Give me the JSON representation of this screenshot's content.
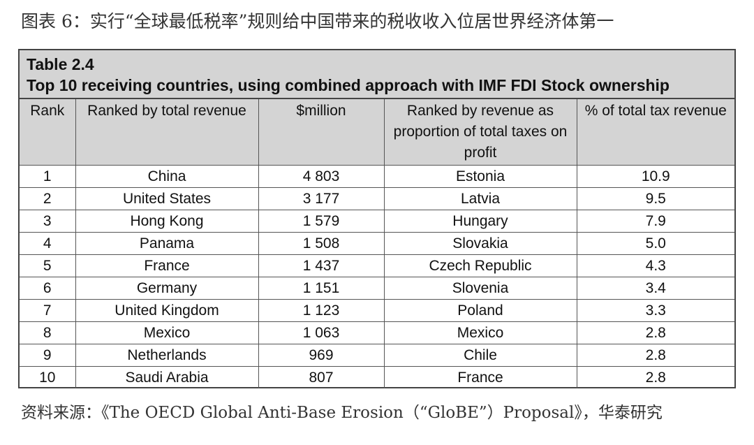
{
  "figure_caption": "图表 6：实行“全球最低税率”规则给中国带来的税收收入位居世界经济体第一",
  "table": {
    "label": "Table 2.4",
    "title": "Top 10 receiving countries, using combined approach with IMF FDI Stock ownership",
    "headers": [
      "Rank",
      "Ranked by total revenue",
      "$million",
      "Ranked by revenue as proportion of total taxes on profit",
      "% of total tax revenue"
    ],
    "rows": [
      [
        "1",
        "China",
        "4 803",
        "Estonia",
        "10.9"
      ],
      [
        "2",
        "United States",
        "3 177",
        "Latvia",
        "9.5"
      ],
      [
        "3",
        "Hong Kong",
        "1 579",
        "Hungary",
        "7.9"
      ],
      [
        "4",
        "Panama",
        "1 508",
        "Slovakia",
        "5.0"
      ],
      [
        "5",
        "France",
        "1 437",
        "Czech Republic",
        "4.3"
      ],
      [
        "6",
        "Germany",
        "1 151",
        "Slovenia",
        "3.4"
      ],
      [
        "7",
        "United Kingdom",
        "1 123",
        "Poland",
        "3.3"
      ],
      [
        "8",
        "Mexico",
        "1 063",
        "Mexico",
        "2.8"
      ],
      [
        "9",
        "Netherlands",
        "969",
        "Chile",
        "2.8"
      ],
      [
        "10",
        "Saudi Arabia",
        "807",
        "France",
        "2.8"
      ]
    ]
  },
  "source": "资料来源：《The OECD Global Anti-Base Erosion（“GloBE”）Proposal》，华泰研究"
}
